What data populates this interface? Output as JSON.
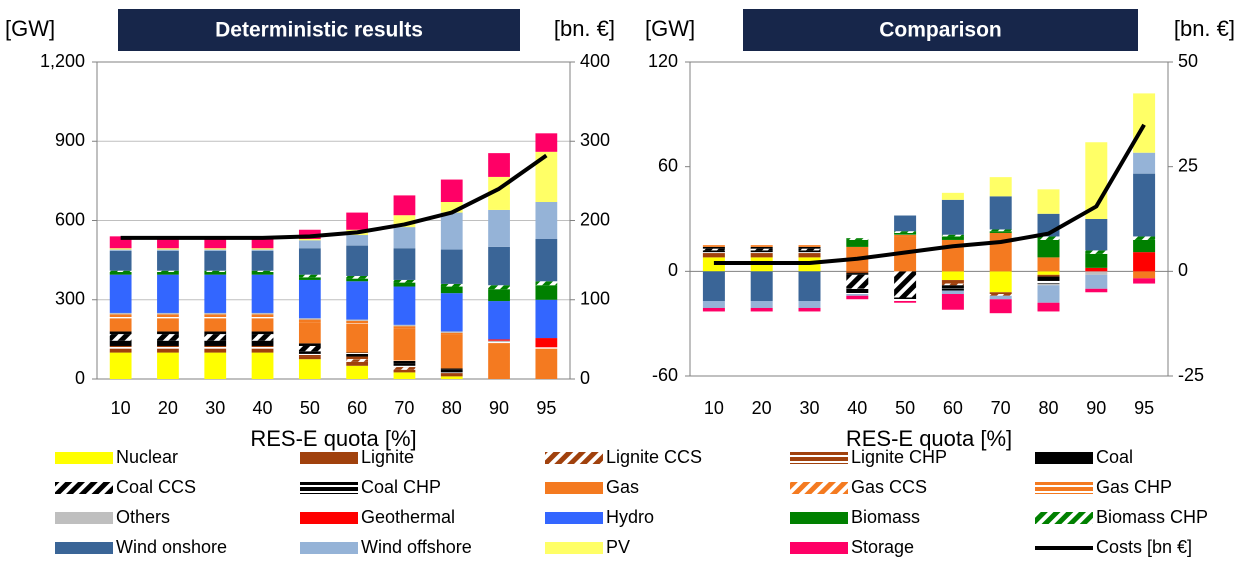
{
  "chart_data": [
    {
      "type": "bar",
      "title": "Deterministic results",
      "ylabel": "[GW]",
      "y2label": "[bn. €]",
      "xlabel": "RES-E quota [%]",
      "categories": [
        "10",
        "20",
        "30",
        "40",
        "50",
        "60",
        "70",
        "80",
        "90",
        "95"
      ],
      "ylim": [
        0,
        1200
      ],
      "yticks": [
        0,
        300,
        600,
        900,
        {
          "value": 1200,
          "label": "1,200"
        }
      ],
      "y2lim": [
        0,
        400
      ],
      "y2ticks": [
        0,
        100,
        200,
        300,
        400
      ],
      "grid": true,
      "series": [
        {
          "name": "Nuclear",
          "color": "#ffff00",
          "pattern": "solid",
          "values": [
            100,
            100,
            100,
            100,
            75,
            50,
            25,
            10,
            0,
            0
          ]
        },
        {
          "name": "Lignite",
          "color": "#a0410d",
          "pattern": "solid",
          "values": [
            15,
            15,
            15,
            15,
            10,
            15,
            10,
            10,
            0,
            0
          ]
        },
        {
          "name": "Lignite CCS",
          "color": "#a0410d",
          "pattern": "hatch",
          "values": [
            0,
            0,
            0,
            0,
            0,
            10,
            10,
            0,
            0,
            0
          ]
        },
        {
          "name": "Lignite CHP",
          "color": "#a0410d",
          "pattern": "double",
          "values": [
            10,
            10,
            10,
            10,
            10,
            10,
            5,
            5,
            0,
            0
          ]
        },
        {
          "name": "Coal",
          "color": "#000000",
          "pattern": "solid",
          "values": [
            20,
            20,
            20,
            20,
            10,
            10,
            10,
            10,
            0,
            0
          ]
        },
        {
          "name": "Coal CCS",
          "color": "#000000",
          "pattern": "hatch",
          "values": [
            25,
            25,
            25,
            25,
            20,
            0,
            0,
            0,
            0,
            0
          ]
        },
        {
          "name": "Coal CHP",
          "color": "#000000",
          "pattern": "double",
          "values": [
            10,
            10,
            10,
            10,
            10,
            5,
            10,
            5,
            0,
            0
          ]
        },
        {
          "name": "Gas",
          "color": "#f47a20",
          "pattern": "solid",
          "values": [
            50,
            50,
            50,
            50,
            80,
            110,
            120,
            130,
            135,
            115
          ]
        },
        {
          "name": "Gas CCS",
          "color": "#f47a20",
          "pattern": "hatch",
          "values": [
            0,
            0,
            0,
            0,
            0,
            0,
            0,
            0,
            0,
            0
          ]
        },
        {
          "name": "Gas CHP",
          "color": "#f47a20",
          "pattern": "double",
          "values": [
            15,
            15,
            15,
            15,
            10,
            10,
            10,
            5,
            5,
            5
          ]
        },
        {
          "name": "Others",
          "color": "#bfbfbf",
          "pattern": "solid",
          "values": [
            5,
            5,
            5,
            5,
            5,
            5,
            5,
            5,
            5,
            0
          ]
        },
        {
          "name": "Geothermal",
          "color": "#ff0000",
          "pattern": "solid",
          "values": [
            0,
            0,
            0,
            0,
            0,
            0,
            0,
            0,
            5,
            35
          ]
        },
        {
          "name": "Hydro",
          "color": "#3366ff",
          "pattern": "solid",
          "values": [
            145,
            145,
            145,
            145,
            145,
            145,
            145,
            145,
            145,
            145
          ]
        },
        {
          "name": "Biomass",
          "color": "#008000",
          "pattern": "solid",
          "values": [
            10,
            10,
            10,
            10,
            10,
            10,
            15,
            25,
            45,
            55
          ]
        },
        {
          "name": "Biomass CHP",
          "color": "#008000",
          "pattern": "hatch",
          "values": [
            5,
            5,
            5,
            5,
            10,
            10,
            10,
            10,
            15,
            15
          ]
        },
        {
          "name": "Wind onshore",
          "color": "#3a6597",
          "pattern": "solid",
          "values": [
            75,
            75,
            75,
            75,
            100,
            115,
            120,
            130,
            145,
            160
          ]
        },
        {
          "name": "Wind offshore",
          "color": "#95b3d7",
          "pattern": "solid",
          "values": [
            5,
            5,
            5,
            5,
            30,
            40,
            80,
            140,
            140,
            140
          ]
        },
        {
          "name": "PV",
          "color": "#ffff66",
          "pattern": "solid",
          "values": [
            5,
            5,
            5,
            5,
            5,
            20,
            45,
            40,
            125,
            190
          ]
        },
        {
          "name": "Storage",
          "color": "#ff0066",
          "pattern": "solid",
          "values": [
            45,
            45,
            45,
            45,
            35,
            65,
            75,
            85,
            90,
            70
          ]
        },
        {
          "name": "Costs [bn €]",
          "color": "#000000",
          "axis": "y2",
          "values": [
            178,
            178,
            178,
            178,
            180,
            185,
            195,
            210,
            240,
            282
          ]
        }
      ]
    },
    {
      "type": "bar",
      "title": "Comparison",
      "ylabel": "[GW]",
      "y2label": "[bn. €]",
      "xlabel": "RES-E quota [%]",
      "categories": [
        "10",
        "20",
        "30",
        "40",
        "50",
        "60",
        "70",
        "80",
        "90",
        "95"
      ],
      "ylim": [
        -60,
        120
      ],
      "yticks": [
        -60,
        0,
        60,
        120
      ],
      "y2lim": [
        -25,
        50
      ],
      "y2ticks": [
        -25,
        0,
        25,
        50
      ],
      "grid": false,
      "series": [
        {
          "values": [
            8,
            8,
            8,
            0,
            0,
            -5,
            -12,
            -2,
            0,
            0
          ]
        },
        {
          "values": [
            2,
            2,
            2,
            -1,
            0,
            -2,
            -1,
            -1,
            0,
            0
          ]
        },
        {
          "values": [
            0,
            0,
            0,
            0,
            0,
            -1,
            -1,
            0,
            0,
            0
          ]
        },
        {
          "values": [
            1,
            1,
            1,
            0,
            0,
            0,
            0,
            0,
            0,
            0
          ]
        },
        {
          "values": [
            1,
            1,
            1,
            -1,
            0,
            -2,
            0,
            -2,
            0,
            0
          ]
        },
        {
          "values": [
            1,
            1,
            1,
            -8,
            -15,
            0,
            0,
            0,
            0,
            0
          ]
        },
        {
          "values": [
            1,
            1,
            1,
            -3,
            -2,
            -1,
            0,
            -2,
            0,
            0
          ]
        },
        {
          "values": [
            1,
            1,
            1,
            14,
            20,
            18,
            22,
            8,
            0,
            -4
          ]
        },
        {
          "values": [
            0,
            0,
            0,
            0,
            0,
            0,
            0,
            0,
            0,
            0
          ]
        },
        {
          "values": [
            0,
            0,
            0,
            0,
            1,
            0,
            0,
            0,
            0,
            0
          ]
        },
        {
          "values": [
            0,
            0,
            0,
            0,
            0,
            0,
            0,
            -1,
            -2,
            0
          ]
        },
        {
          "values": [
            0,
            0,
            0,
            0,
            0,
            0,
            0,
            0,
            2,
            11
          ]
        },
        {
          "values": [
            0,
            0,
            0,
            0,
            0,
            0,
            0,
            0,
            0,
            0
          ]
        },
        {
          "values": [
            0,
            0,
            0,
            4,
            1,
            2,
            1,
            10,
            8,
            7
          ]
        },
        {
          "values": [
            0,
            0,
            0,
            1,
            1,
            1,
            1,
            2,
            2,
            2
          ]
        },
        {
          "values": [
            -17,
            -17,
            -17,
            0,
            9,
            20,
            19,
            13,
            18,
            36
          ]
        },
        {
          "values": [
            -4,
            -4,
            -4,
            -1,
            0,
            -2,
            -2,
            -10,
            -8,
            12
          ]
        },
        {
          "values": [
            0,
            0,
            0,
            0,
            0,
            4,
            11,
            14,
            44,
            34
          ]
        },
        {
          "values": [
            -2,
            -2,
            -2,
            -2,
            -1,
            -9,
            -8,
            -5,
            -2,
            -3
          ]
        },
        {
          "axis": "y2",
          "values": [
            2,
            2,
            2,
            3,
            4.5,
            6,
            7,
            9,
            15.5,
            35
          ]
        }
      ]
    }
  ]
}
